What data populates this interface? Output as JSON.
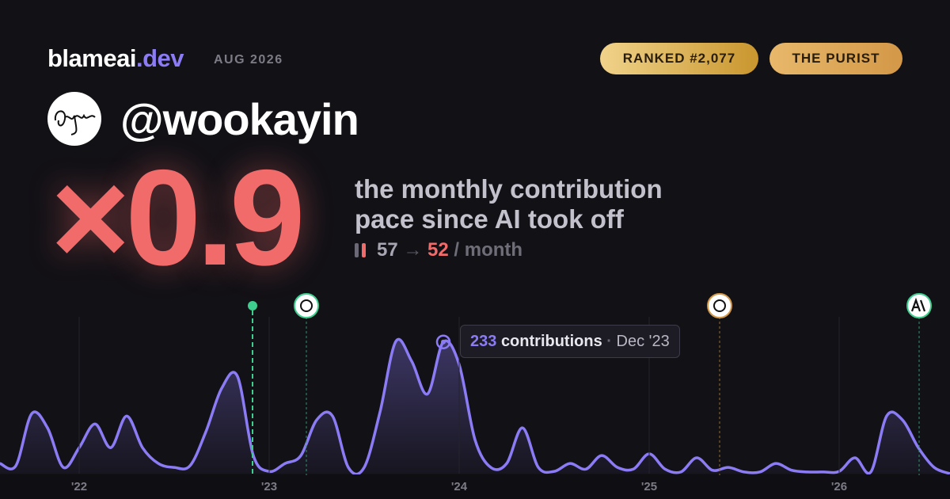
{
  "header": {
    "brand": "blameai",
    "brand_suffix": ".dev",
    "period": "AUG 2026",
    "rank": "RANKED #2,077",
    "badge": "THE PURIST"
  },
  "user": {
    "handle": "@wookayin"
  },
  "stat": {
    "multiplier": "×0.9",
    "description": [
      "the monthly contribution",
      "pace since AI took off"
    ],
    "before": 57,
    "arrow": "→",
    "after": 52,
    "unit": "/ month"
  },
  "chart_data": {
    "type": "area",
    "color": "#8b7cf6",
    "categories": [
      null,
      null,
      null,
      null,
      null,
      "'22",
      null,
      null,
      null,
      null,
      null,
      null,
      null,
      null,
      null,
      null,
      null,
      "'23",
      null,
      null,
      null,
      null,
      null,
      null,
      null,
      null,
      null,
      null,
      null,
      "'24",
      null,
      null,
      null,
      null,
      null,
      null,
      null,
      null,
      null,
      null,
      null,
      "'25",
      null,
      null,
      null,
      null,
      null,
      null,
      null,
      null,
      null,
      null,
      null,
      "'26",
      null,
      null,
      null,
      null,
      null,
      null,
      null
    ],
    "values": [
      18,
      14,
      106,
      81,
      11,
      46,
      88,
      46,
      102,
      46,
      18,
      11,
      14,
      74,
      151,
      172,
      32,
      4,
      18,
      32,
      95,
      102,
      11,
      11,
      109,
      234,
      199,
      141,
      233,
      193,
      60,
      11,
      18,
      81,
      11,
      4,
      18,
      8,
      32,
      11,
      8,
      35,
      8,
      3,
      28,
      6,
      11,
      3,
      3,
      18,
      6,
      3,
      3,
      4,
      28,
      3,
      102,
      95,
      46,
      11,
      0
    ],
    "tooltip": {
      "index": 28,
      "label": "contributions",
      "date": "Dec '23"
    }
  }
}
